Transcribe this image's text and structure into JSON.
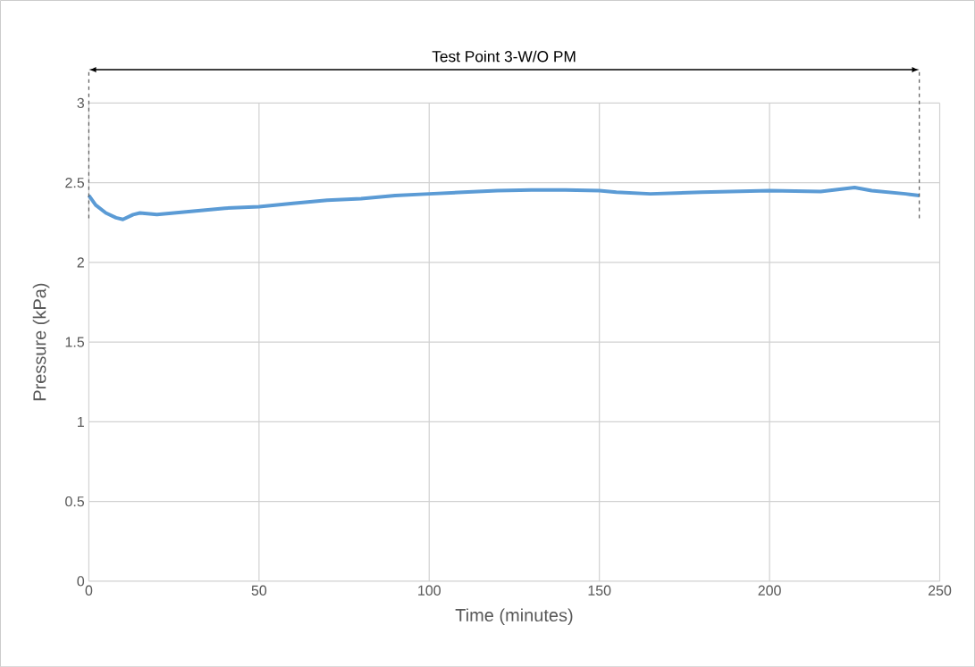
{
  "chart_data": {
    "type": "line",
    "xlabel": "Time (minutes)",
    "ylabel": "Pressure (kPa)",
    "xlim": [
      0,
      250
    ],
    "xticks": [
      0,
      50,
      100,
      150,
      200,
      250
    ],
    "ylim": [
      0,
      3
    ],
    "yticks": [
      0,
      0.5,
      1,
      1.5,
      2,
      2.5,
      3
    ],
    "grid": true,
    "series": [
      {
        "color": "#5b9bd5",
        "x": [
          0,
          2,
          5,
          8,
          10,
          13,
          15,
          20,
          30,
          40,
          50,
          60,
          70,
          80,
          90,
          100,
          110,
          120,
          130,
          140,
          150,
          155,
          165,
          180,
          200,
          215,
          225,
          230,
          240,
          244
        ],
        "values": [
          2.42,
          2.36,
          2.31,
          2.28,
          2.27,
          2.3,
          2.31,
          2.3,
          2.32,
          2.34,
          2.35,
          2.37,
          2.39,
          2.4,
          2.42,
          2.43,
          2.44,
          2.45,
          2.455,
          2.455,
          2.45,
          2.44,
          2.43,
          2.44,
          2.45,
          2.445,
          2.47,
          2.45,
          2.43,
          2.42
        ]
      }
    ],
    "ref_lines": [
      {
        "axis": "x",
        "value": 0,
        "line_style": "dashed"
      },
      {
        "axis": "x",
        "value": 244,
        "line_style": "dashed"
      }
    ],
    "annotations": [
      "Test Point 3-W/O PM"
    ]
  }
}
